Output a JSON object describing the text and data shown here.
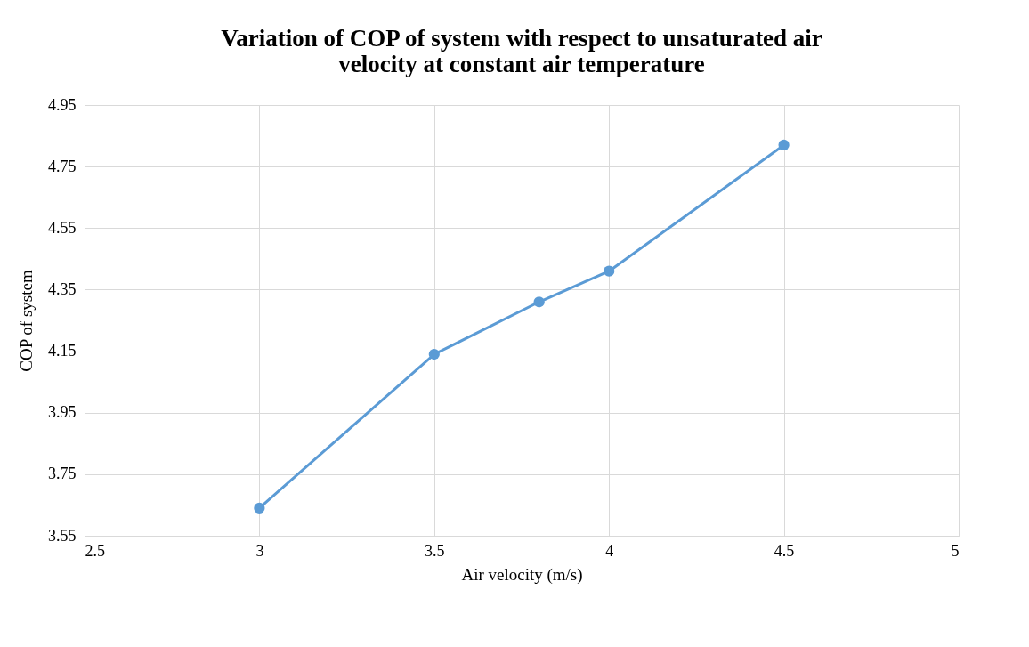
{
  "chart_data": {
    "type": "line",
    "title": "Variation of COP of system with respect to unsaturated air\nvelocity at constant air temperature",
    "xlabel": "Air velocity (m/s)",
    "ylabel": "COP of system",
    "x": [
      3,
      3.5,
      3.8,
      4,
      4.5
    ],
    "series": [
      {
        "color": "#5b9bd5",
        "values": [
          3.64,
          4.14,
          4.31,
          4.41,
          4.82
        ]
      }
    ],
    "xlim": [
      2.5,
      5
    ],
    "xticks": [
      2.5,
      3,
      3.5,
      4,
      4.5,
      5
    ],
    "ylim": [
      3.55,
      4.95
    ],
    "yticks": [
      3.55,
      3.75,
      3.95,
      4.15,
      4.35,
      4.55,
      4.75,
      4.95
    ],
    "grid": true,
    "marker": "circle",
    "line_style": "solid"
  }
}
